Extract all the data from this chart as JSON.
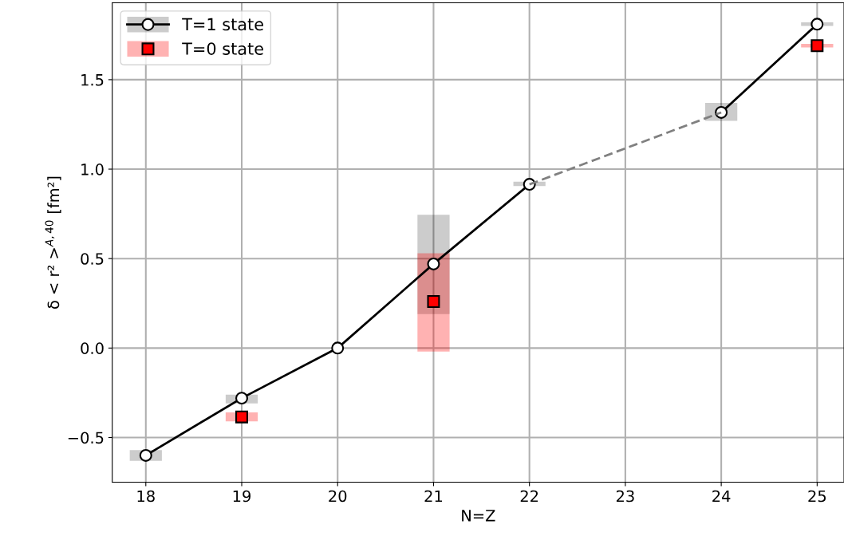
{
  "chart_data": {
    "type": "line",
    "xlabel": "N=Z",
    "ylabel": "δ < r² >$^{A,40}$ [fm²]",
    "xlim": [
      17.65,
      25.28
    ],
    "ylim": [
      -0.75,
      1.93
    ],
    "xticks": [
      18,
      19,
      20,
      21,
      22,
      23,
      24,
      25
    ],
    "yticks": [
      -0.5,
      {
        "value": 0,
        "label": "0.0"
      },
      0.5,
      {
        "value": 1,
        "label": "1.0"
      },
      1.5
    ],
    "grid": true,
    "legend": "top left",
    "series": [
      {
        "name": "T=1 state",
        "color": "#000000",
        "marker": "circle",
        "line_style": "solid",
        "x": [
          18,
          19,
          20,
          21,
          22,
          23,
          24,
          25
        ],
        "values": [
          -0.6,
          -0.28,
          0.0,
          0.47,
          0.915,
          null,
          1.317,
          1.81
        ],
        "errors": [
          [
            -0.63,
            -0.57
          ],
          [
            -0.31,
            -0.26
          ],
          null,
          [
            0.19,
            0.745
          ],
          [
            0.905,
            0.93
          ],
          null,
          [
            1.27,
            1.37
          ],
          [
            1.8,
            1.82
          ]
        ]
      },
      {
        "name": "T=0 state",
        "type": "scatter",
        "color": "#ff0000",
        "marker": "square",
        "x": [
          19,
          21,
          25
        ],
        "values": [
          -0.385,
          0.26,
          1.69
        ],
        "errors": [
          [
            -0.41,
            -0.36
          ],
          [
            -0.02,
            0.53
          ],
          [
            1.68,
            1.7
          ]
        ]
      },
      {
        "color": "#808080",
        "marker": "none",
        "line_style": "dashed",
        "x": [
          22,
          24
        ],
        "values": [
          0.915,
          1.317
        ]
      }
    ]
  }
}
